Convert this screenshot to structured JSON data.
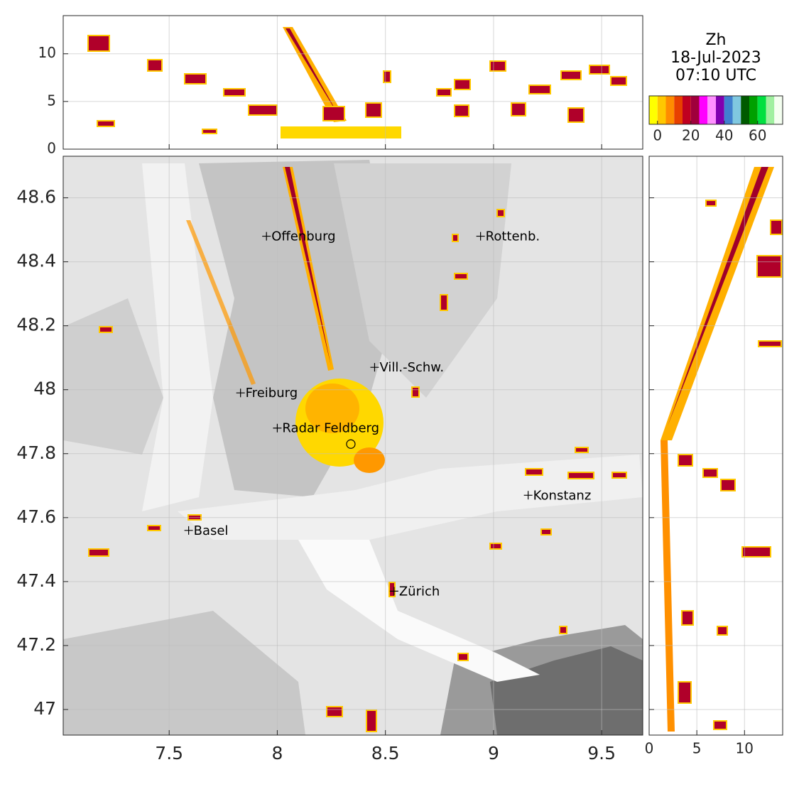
{
  "chart_data": [
    {
      "type": "map",
      "xlim": [
        7.01,
        9.69
      ],
      "ylim": [
        46.92,
        48.73
      ],
      "xticks": [
        7.5,
        8,
        8.5,
        9,
        9.5
      ],
      "yticks": [
        47,
        47.2,
        47.4,
        47.6,
        47.8,
        48,
        48.2,
        48.4,
        48.6
      ],
      "grid": true,
      "cities": [
        {
          "name": "Offenburg",
          "lon": 7.95,
          "lat": 48.48
        },
        {
          "name": "Rottenb.",
          "lon": 8.94,
          "lat": 48.48
        },
        {
          "name": "Vill.-Schw.",
          "lon": 8.45,
          "lat": 48.07
        },
        {
          "name": "Freiburg",
          "lon": 7.83,
          "lat": 47.99
        },
        {
          "name": "Radar Feldberg",
          "lon": 8.0,
          "lat": 47.88
        },
        {
          "name": "Konstanz",
          "lon": 9.16,
          "lat": 47.67
        },
        {
          "name": "Basel",
          "lon": 7.59,
          "lat": 47.56
        },
        {
          "name": "Zürich",
          "lon": 8.54,
          "lat": 47.37
        }
      ],
      "radar_site": {
        "lon": 8.34,
        "lat": 47.83
      }
    },
    {
      "type": "profile",
      "xlim": [
        7.01,
        9.69
      ],
      "ylim": [
        0,
        14
      ],
      "xticks": [
        7.5,
        8,
        8.5,
        9,
        9.5
      ],
      "yticks": [
        0,
        5,
        10
      ],
      "grid": true
    },
    {
      "type": "profile-vertical",
      "xlim": [
        0,
        14
      ],
      "ylim": [
        46.92,
        48.73
      ],
      "xticks": [
        0,
        5,
        10
      ],
      "yticks": [
        47,
        47.2,
        47.4,
        47.6,
        47.8,
        48,
        48.2,
        48.4,
        48.6
      ],
      "grid": true
    },
    {
      "type": "colorbar",
      "title": [
        "Zh",
        "18-Jul-2023",
        "07:10 UTC"
      ],
      "xlim": [
        -5,
        75
      ],
      "xticks": [
        0,
        20,
        40,
        60
      ],
      "colors": [
        "#ffff00",
        "#ffc800",
        "#ff8c00",
        "#e84000",
        "#c00020",
        "#a0003c",
        "#ff00ff",
        "#ff90ff",
        "#8000b0",
        "#4080d0",
        "#80c8e0",
        "#005a00",
        "#00a000",
        "#00e040",
        "#a0f0a0",
        "#f4fff0"
      ]
    }
  ]
}
